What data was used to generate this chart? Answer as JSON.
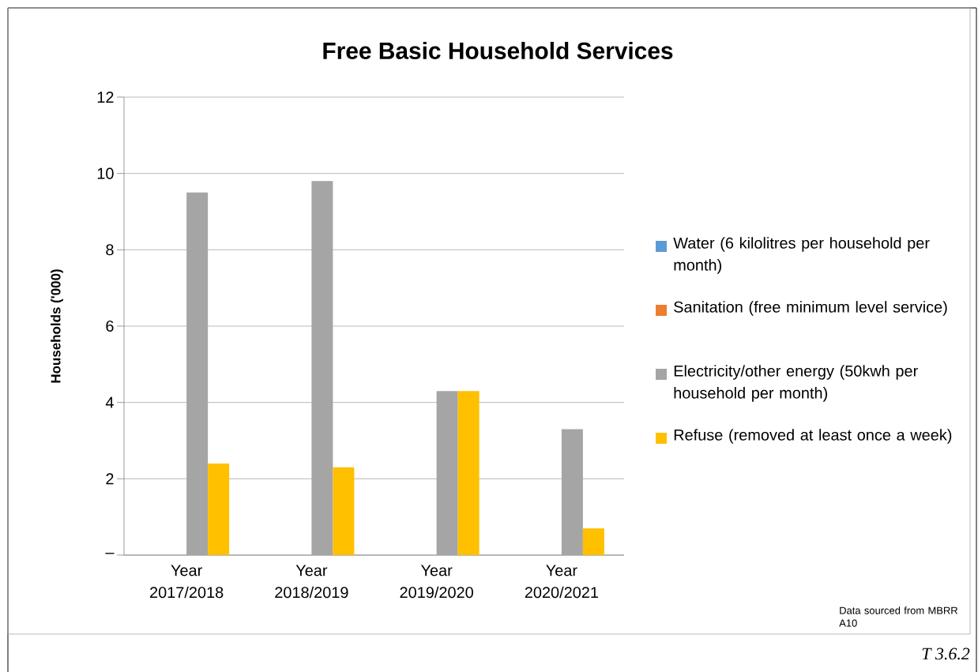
{
  "chart_data": {
    "type": "bar",
    "title": "Free Basic Household Services",
    "ylabel": "Households ('000)",
    "categories": [
      "Year 2017/2018",
      "Year 2018/2019",
      "Year 2019/2020",
      "Year 2020/2021"
    ],
    "series": [
      {
        "name": "Water (6 kilolitres per household per month)",
        "color": "#5b9bd5",
        "values": [
          0,
          0,
          0,
          0
        ]
      },
      {
        "name": "Sanitation (free minimum level service)",
        "color": "#ed7d31",
        "values": [
          0,
          0,
          0,
          0
        ]
      },
      {
        "name": "Electricity/other energy (50kwh per household per month)",
        "color": "#a5a5a5",
        "values": [
          9.5,
          9.8,
          4.3,
          3.3
        ]
      },
      {
        "name": "Refuse (removed at least once a week)",
        "color": "#ffc000",
        "values": [
          2.4,
          2.3,
          4.3,
          0.7
        ]
      }
    ],
    "ylim": [
      0,
      12
    ],
    "yticks": [
      {
        "value": 0,
        "label": "–"
      },
      2,
      4,
      6,
      8,
      10,
      12
    ],
    "grid": "y",
    "legend": "right",
    "annotations": [
      "Data sourced from MBRR A10",
      "T 3.6.2"
    ]
  }
}
